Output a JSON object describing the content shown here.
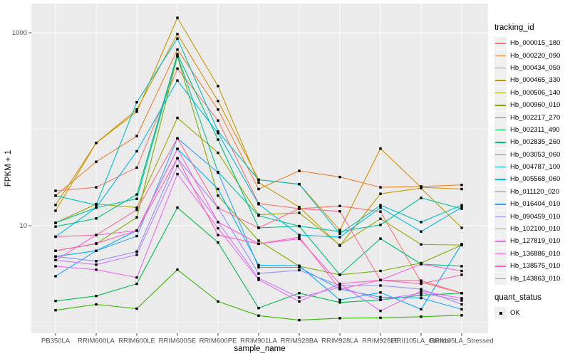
{
  "chart_data": {
    "type": "line",
    "title": "",
    "xlabel": "sample_name",
    "ylabel": "FPKM + 1",
    "y_scale": "log10",
    "y_tick_labels": [
      "10",
      "1000"
    ],
    "y_tick_values": [
      10,
      1000
    ],
    "y_minor_values": [
      1,
      100
    ],
    "ylim": [
      0.8,
      1900
    ],
    "grid": true,
    "legend_position": "right",
    "panel_bg": "#EBEBEB",
    "grid_color": "#FFFFFF",
    "tick_label_color": "#4D4D4D",
    "axis_title_color": "#000000",
    "point_color": "#000000",
    "categories": [
      "PB350LA",
      "RRIM600LA",
      "RRIM600LE",
      "RRIM600SE",
      "RRIM600PE",
      "RRIM901LA",
      "RRIM928BA",
      "RRIM928LA",
      "RRIM928LE",
      "RRII105LA_Control",
      "RRII105LA_Stressed"
    ],
    "series": [
      {
        "name": "Hb_000015_180",
        "color": "#F8766D",
        "values": [
          23,
          25,
          40,
          425,
          123,
          17,
          15,
          16,
          14,
          2.6,
          2.0
        ]
      },
      {
        "name": "Hb_000220_090",
        "color": "#EA8331",
        "values": [
          20.5,
          46,
          85,
          670,
          160,
          24,
          37,
          32,
          25,
          25.5,
          26.5
        ]
      },
      {
        "name": "Hb_000434_050",
        "color": "#D89000",
        "values": [
          16.4,
          72,
          160,
          970,
          196,
          30,
          27,
          9,
          63,
          25,
          24
        ]
      },
      {
        "name": "Hb_000465_330",
        "color": "#C09B00",
        "values": [
          14.3,
          72,
          152,
          1430,
          280,
          28,
          15.6,
          6.2,
          21.4,
          24.5,
          9.5
        ]
      },
      {
        "name": "Hb_000506_140",
        "color": "#A3A500",
        "values": [
          10.7,
          16.8,
          15.4,
          131,
          57,
          13,
          13.6,
          6.3,
          11.8,
          6.4,
          6.3
        ]
      },
      {
        "name": "Hb_000960_010",
        "color": "#7CAE00",
        "values": [
          5.5,
          6.5,
          12.2,
          570,
          20.5,
          7.0,
          3.8,
          3.1,
          3.4,
          4.1,
          6.3
        ]
      },
      {
        "name": "Hb_002217_270",
        "color": "#39B600",
        "values": [
          1.33,
          1.53,
          1.38,
          3.5,
          1.64,
          1.17,
          1.05,
          1.1,
          1.11,
          1.14,
          1.18
        ]
      },
      {
        "name": "Hb_002311_490",
        "color": "#00BB4E",
        "values": [
          1.66,
          1.87,
          2.5,
          15.4,
          6.7,
          1.4,
          2.0,
          1.6,
          1.7,
          1.9,
          2.0
        ]
      },
      {
        "name": "Hb_002835_260",
        "color": "#00BF7D",
        "values": [
          9.8,
          11.9,
          21.1,
          600,
          78,
          9.5,
          9.9,
          3.1,
          7.35,
          4.0,
          3.8
        ]
      },
      {
        "name": "Hb_003053_060",
        "color": "#00C1A3",
        "values": [
          10.7,
          15.4,
          19,
          580,
          36,
          12.7,
          9.9,
          8.7,
          10.2,
          19.4,
          15.0
        ]
      },
      {
        "name": "Hb_004787_100",
        "color": "#00BFC4",
        "values": [
          20.5,
          16.4,
          190,
          870,
          95,
          29.9,
          26.9,
          8.25,
          16.3,
          10.9,
          16.3
        ]
      },
      {
        "name": "Hb_005568_060",
        "color": "#00BAE0",
        "values": [
          7.7,
          15.4,
          59,
          320,
          91,
          16.7,
          8.0,
          7.6,
          15.4,
          8.7,
          15.5
        ]
      },
      {
        "name": "Hb_011120_020",
        "color": "#00B0F6",
        "values": [
          4.8,
          5.5,
          8.9,
          62.6,
          24,
          3.9,
          3.85,
          1.7,
          2.03,
          1.36,
          6.45
        ]
      },
      {
        "name": "Hb_016404_010",
        "color": "#35A2FF",
        "values": [
          3.0,
          5.5,
          7.8,
          80.5,
          35.5,
          3.7,
          3.7,
          2.2,
          1.82,
          1.78,
          1.36
        ]
      },
      {
        "name": "Hb_090459_010",
        "color": "#9590FF",
        "values": [
          4.8,
          4.3,
          5.4,
          50,
          15.3,
          3.2,
          3.46,
          2.4,
          2.4,
          2.2,
          1.53
        ]
      },
      {
        "name": "Hb_102100_010",
        "color": "#C77CFF",
        "values": [
          4.4,
          3.95,
          5.0,
          41.5,
          10.9,
          2.86,
          1.8,
          2.3,
          1.71,
          2.0,
          1.68
        ]
      },
      {
        "name": "Hb_127819_010",
        "color": "#E76BF3",
        "values": [
          3.8,
          3.5,
          2.9,
          34.3,
          9.4,
          2.75,
          1.64,
          2.5,
          1.31,
          2.1,
          1.77
        ]
      },
      {
        "name": "Hb_136886_010",
        "color": "#FA62DB",
        "values": [
          4.4,
          8.0,
          8.9,
          62.6,
          10.9,
          6.5,
          7.3,
          2.5,
          2.73,
          4.0,
          3.4
        ]
      },
      {
        "name": "Hb_138575_010",
        "color": "#FF62BC",
        "values": [
          5.5,
          6.55,
          8.9,
          50,
          8.0,
          6.5,
          7.6,
          2.2,
          2.73,
          2.5,
          3.1
        ]
      },
      {
        "name": "Hb_143863_010",
        "color": "#FF6A98",
        "values": [
          7.7,
          8.0,
          14.6,
          80.5,
          15.3,
          9.5,
          15.0,
          14.1,
          2.73,
          2.7,
          2.0
        ]
      }
    ],
    "legend": {
      "color_title": "tracking_id",
      "shape_title": "quant_status",
      "shape_items": [
        {
          "label": "OK",
          "shape": "filled-square",
          "color": "#000000"
        }
      ]
    }
  }
}
